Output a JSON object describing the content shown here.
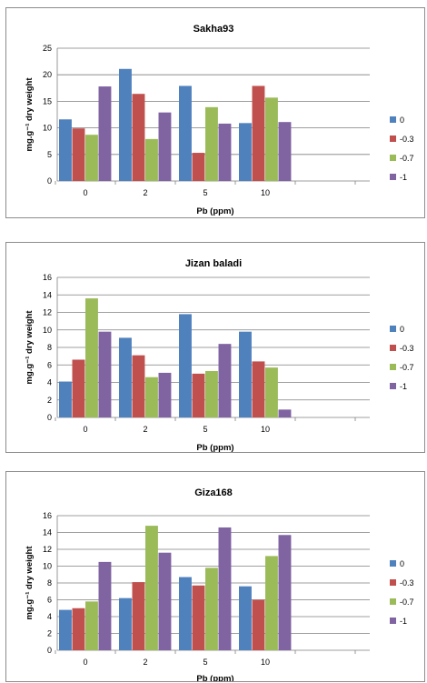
{
  "chart_data": [
    {
      "type": "bar",
      "title": "Sakha93",
      "xlabel": "Pb (ppm)",
      "ylabel": "mg.g⁻¹ dry weight",
      "categories": [
        "0",
        "2",
        "5",
        "10"
      ],
      "ylim": [
        0,
        25
      ],
      "yticks": [
        0,
        5,
        10,
        15,
        20,
        25
      ],
      "grid": true,
      "legend": "right",
      "series": [
        {
          "name": "0",
          "color": "#4f81bd",
          "values": [
            11.6,
            21.1,
            17.9,
            10.9
          ]
        },
        {
          "name": "-0.3",
          "color": "#c0504d",
          "values": [
            9.9,
            16.4,
            5.3,
            17.9
          ]
        },
        {
          "name": "-0.7",
          "color": "#9bbb59",
          "values": [
            8.7,
            7.9,
            13.9,
            15.7
          ]
        },
        {
          "name": "-1",
          "color": "#8064a2",
          "values": [
            17.8,
            12.9,
            10.8,
            11.1
          ]
        }
      ]
    },
    {
      "type": "bar",
      "title": "Jizan baladi",
      "xlabel": "Pb (ppm)",
      "ylabel": "mg.g⁻¹ dry weight",
      "categories": [
        "0",
        "2",
        "5",
        "10"
      ],
      "ylim": [
        0,
        16
      ],
      "yticks": [
        0,
        2,
        4,
        6,
        8,
        10,
        12,
        14,
        16
      ],
      "grid": true,
      "legend": "right",
      "series": [
        {
          "name": "0",
          "color": "#4f81bd",
          "values": [
            4.1,
            9.1,
            11.8,
            9.8
          ]
        },
        {
          "name": "-0.3",
          "color": "#c0504d",
          "values": [
            6.6,
            7.1,
            5.0,
            6.4
          ]
        },
        {
          "name": "-0.7",
          "color": "#9bbb59",
          "values": [
            13.6,
            4.6,
            5.3,
            5.7
          ]
        },
        {
          "name": "-1",
          "color": "#8064a2",
          "values": [
            9.8,
            5.1,
            8.4,
            0.9
          ]
        }
      ]
    },
    {
      "type": "bar",
      "title": "Giza168",
      "xlabel": "Pb (ppm)",
      "ylabel": "mg.g⁻¹ dry weight",
      "categories": [
        "0",
        "2",
        "5",
        "10"
      ],
      "ylim": [
        0,
        16
      ],
      "yticks": [
        0,
        2,
        4,
        6,
        8,
        10,
        12,
        14,
        16
      ],
      "grid": true,
      "legend": "right",
      "series": [
        {
          "name": "0",
          "color": "#4f81bd",
          "values": [
            4.8,
            6.2,
            8.7,
            7.6
          ]
        },
        {
          "name": "-0.3",
          "color": "#c0504d",
          "values": [
            5.0,
            8.1,
            7.7,
            6.0
          ]
        },
        {
          "name": "-0.7",
          "color": "#9bbb59",
          "values": [
            5.8,
            14.8,
            9.8,
            11.2
          ]
        },
        {
          "name": "-1",
          "color": "#8064a2",
          "values": [
            10.5,
            11.6,
            14.6,
            13.7
          ]
        }
      ]
    }
  ]
}
